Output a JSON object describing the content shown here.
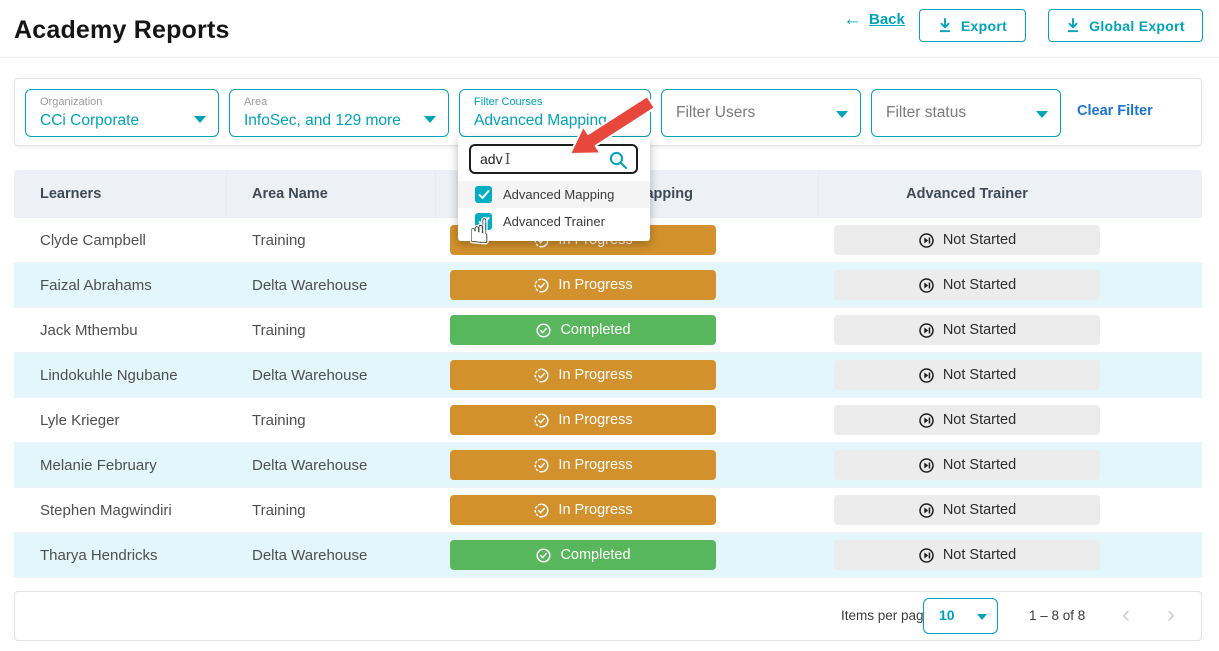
{
  "header": {
    "title": "Academy Reports",
    "back_label": "Back",
    "export_label": "Export",
    "global_export_label": "Global Export"
  },
  "filters": {
    "organization": {
      "label": "Organization",
      "value": "CCi Corporate"
    },
    "area": {
      "label": "Area",
      "value": "InfoSec, and 129 more"
    },
    "courses": {
      "label": "Filter Courses",
      "value": "Advanced Mapping, ..."
    },
    "users": {
      "placeholder": "Filter Users"
    },
    "status": {
      "placeholder": "Filter status"
    },
    "clear_label": "Clear Filter"
  },
  "course_dropdown": {
    "search_value": "adv",
    "options": [
      {
        "label": "Advanced Mapping",
        "checked": true,
        "hovered": true
      },
      {
        "label": "Advanced Trainer",
        "checked": true,
        "hovered": false
      }
    ]
  },
  "table": {
    "columns": [
      "Learners",
      "Area Name",
      "Advanced Mapping",
      "Advanced Trainer"
    ],
    "rows": [
      {
        "learner": "Clyde Campbell",
        "area": "Training",
        "statuses": [
          {
            "type": "in_progress",
            "label": "In Progress"
          },
          {
            "type": "not_started",
            "label": "Not Started"
          }
        ]
      },
      {
        "learner": "Faizal Abrahams",
        "area": "Delta Warehouse",
        "statuses": [
          {
            "type": "in_progress",
            "label": "In Progress"
          },
          {
            "type": "not_started",
            "label": "Not Started"
          }
        ]
      },
      {
        "learner": "Jack Mthembu",
        "area": "Training",
        "statuses": [
          {
            "type": "completed",
            "label": "Completed"
          },
          {
            "type": "not_started",
            "label": "Not Started"
          }
        ]
      },
      {
        "learner": "Lindokuhle Ngubane",
        "area": "Delta Warehouse",
        "statuses": [
          {
            "type": "in_progress",
            "label": "In Progress"
          },
          {
            "type": "not_started",
            "label": "Not Started"
          }
        ]
      },
      {
        "learner": "Lyle Krieger",
        "area": "Training",
        "statuses": [
          {
            "type": "in_progress",
            "label": "In Progress"
          },
          {
            "type": "not_started",
            "label": "Not Started"
          }
        ]
      },
      {
        "learner": "Melanie February",
        "area": "Delta Warehouse",
        "statuses": [
          {
            "type": "in_progress",
            "label": "In Progress"
          },
          {
            "type": "not_started",
            "label": "Not Started"
          }
        ]
      },
      {
        "learner": "Stephen Magwindiri",
        "area": "Training",
        "statuses": [
          {
            "type": "in_progress",
            "label": "In Progress"
          },
          {
            "type": "not_started",
            "label": "Not Started"
          }
        ]
      },
      {
        "learner": "Tharya Hendricks",
        "area": "Delta Warehouse",
        "statuses": [
          {
            "type": "completed",
            "label": "Completed"
          },
          {
            "type": "not_started",
            "label": "Not Started"
          }
        ]
      }
    ]
  },
  "pagination": {
    "items_per_page_label": "Items per page:",
    "page_size": "10",
    "range_label": "1 – 8 of 8"
  },
  "colors": {
    "accent_teal": "#00a3b8",
    "link_blue": "#1a75cf",
    "in_progress": "#d2912c",
    "completed": "#58b65c",
    "not_started_bg": "#ececec",
    "row_stripe": "#e2f6fb",
    "header_bg": "#edf0f5",
    "annotation_red": "#e8473c"
  }
}
